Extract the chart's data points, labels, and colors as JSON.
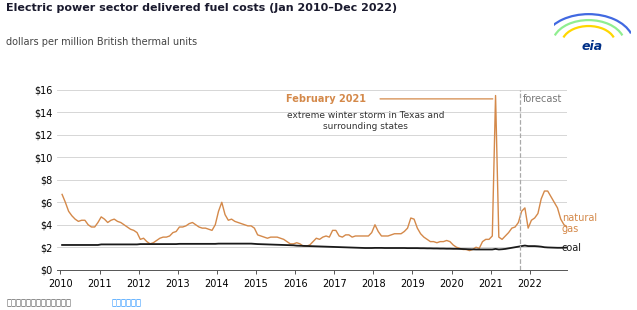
{
  "title": "Electric power sector delivered fuel costs (Jan 2010–Dec 2022)",
  "subtitle": "dollars per million British thermal units",
  "source_text": "资料来源：美国能源信息署，",
  "source_link": "短期能源展望",
  "ng_color": "#D4894A",
  "coal_color": "#1a1a1a",
  "bg_color": "#ffffff",
  "grid_color": "#d0d0d0",
  "forecast_line_x": 2021.75,
  "forecast_label": "forecast",
  "ng_label": "natural\ngas",
  "coal_label": "coal",
  "ylim": [
    0,
    16
  ],
  "yticks": [
    0,
    2,
    4,
    6,
    8,
    10,
    12,
    14,
    16
  ],
  "ytick_labels": [
    "$0",
    "$2",
    "$4",
    "$6",
    "$8",
    "$10",
    "$12",
    "$14",
    "$16"
  ],
  "xlim": [
    2009.92,
    2022.95
  ],
  "xticks": [
    2010,
    2011,
    2012,
    2013,
    2014,
    2015,
    2016,
    2017,
    2018,
    2019,
    2020,
    2021,
    2022
  ]
}
